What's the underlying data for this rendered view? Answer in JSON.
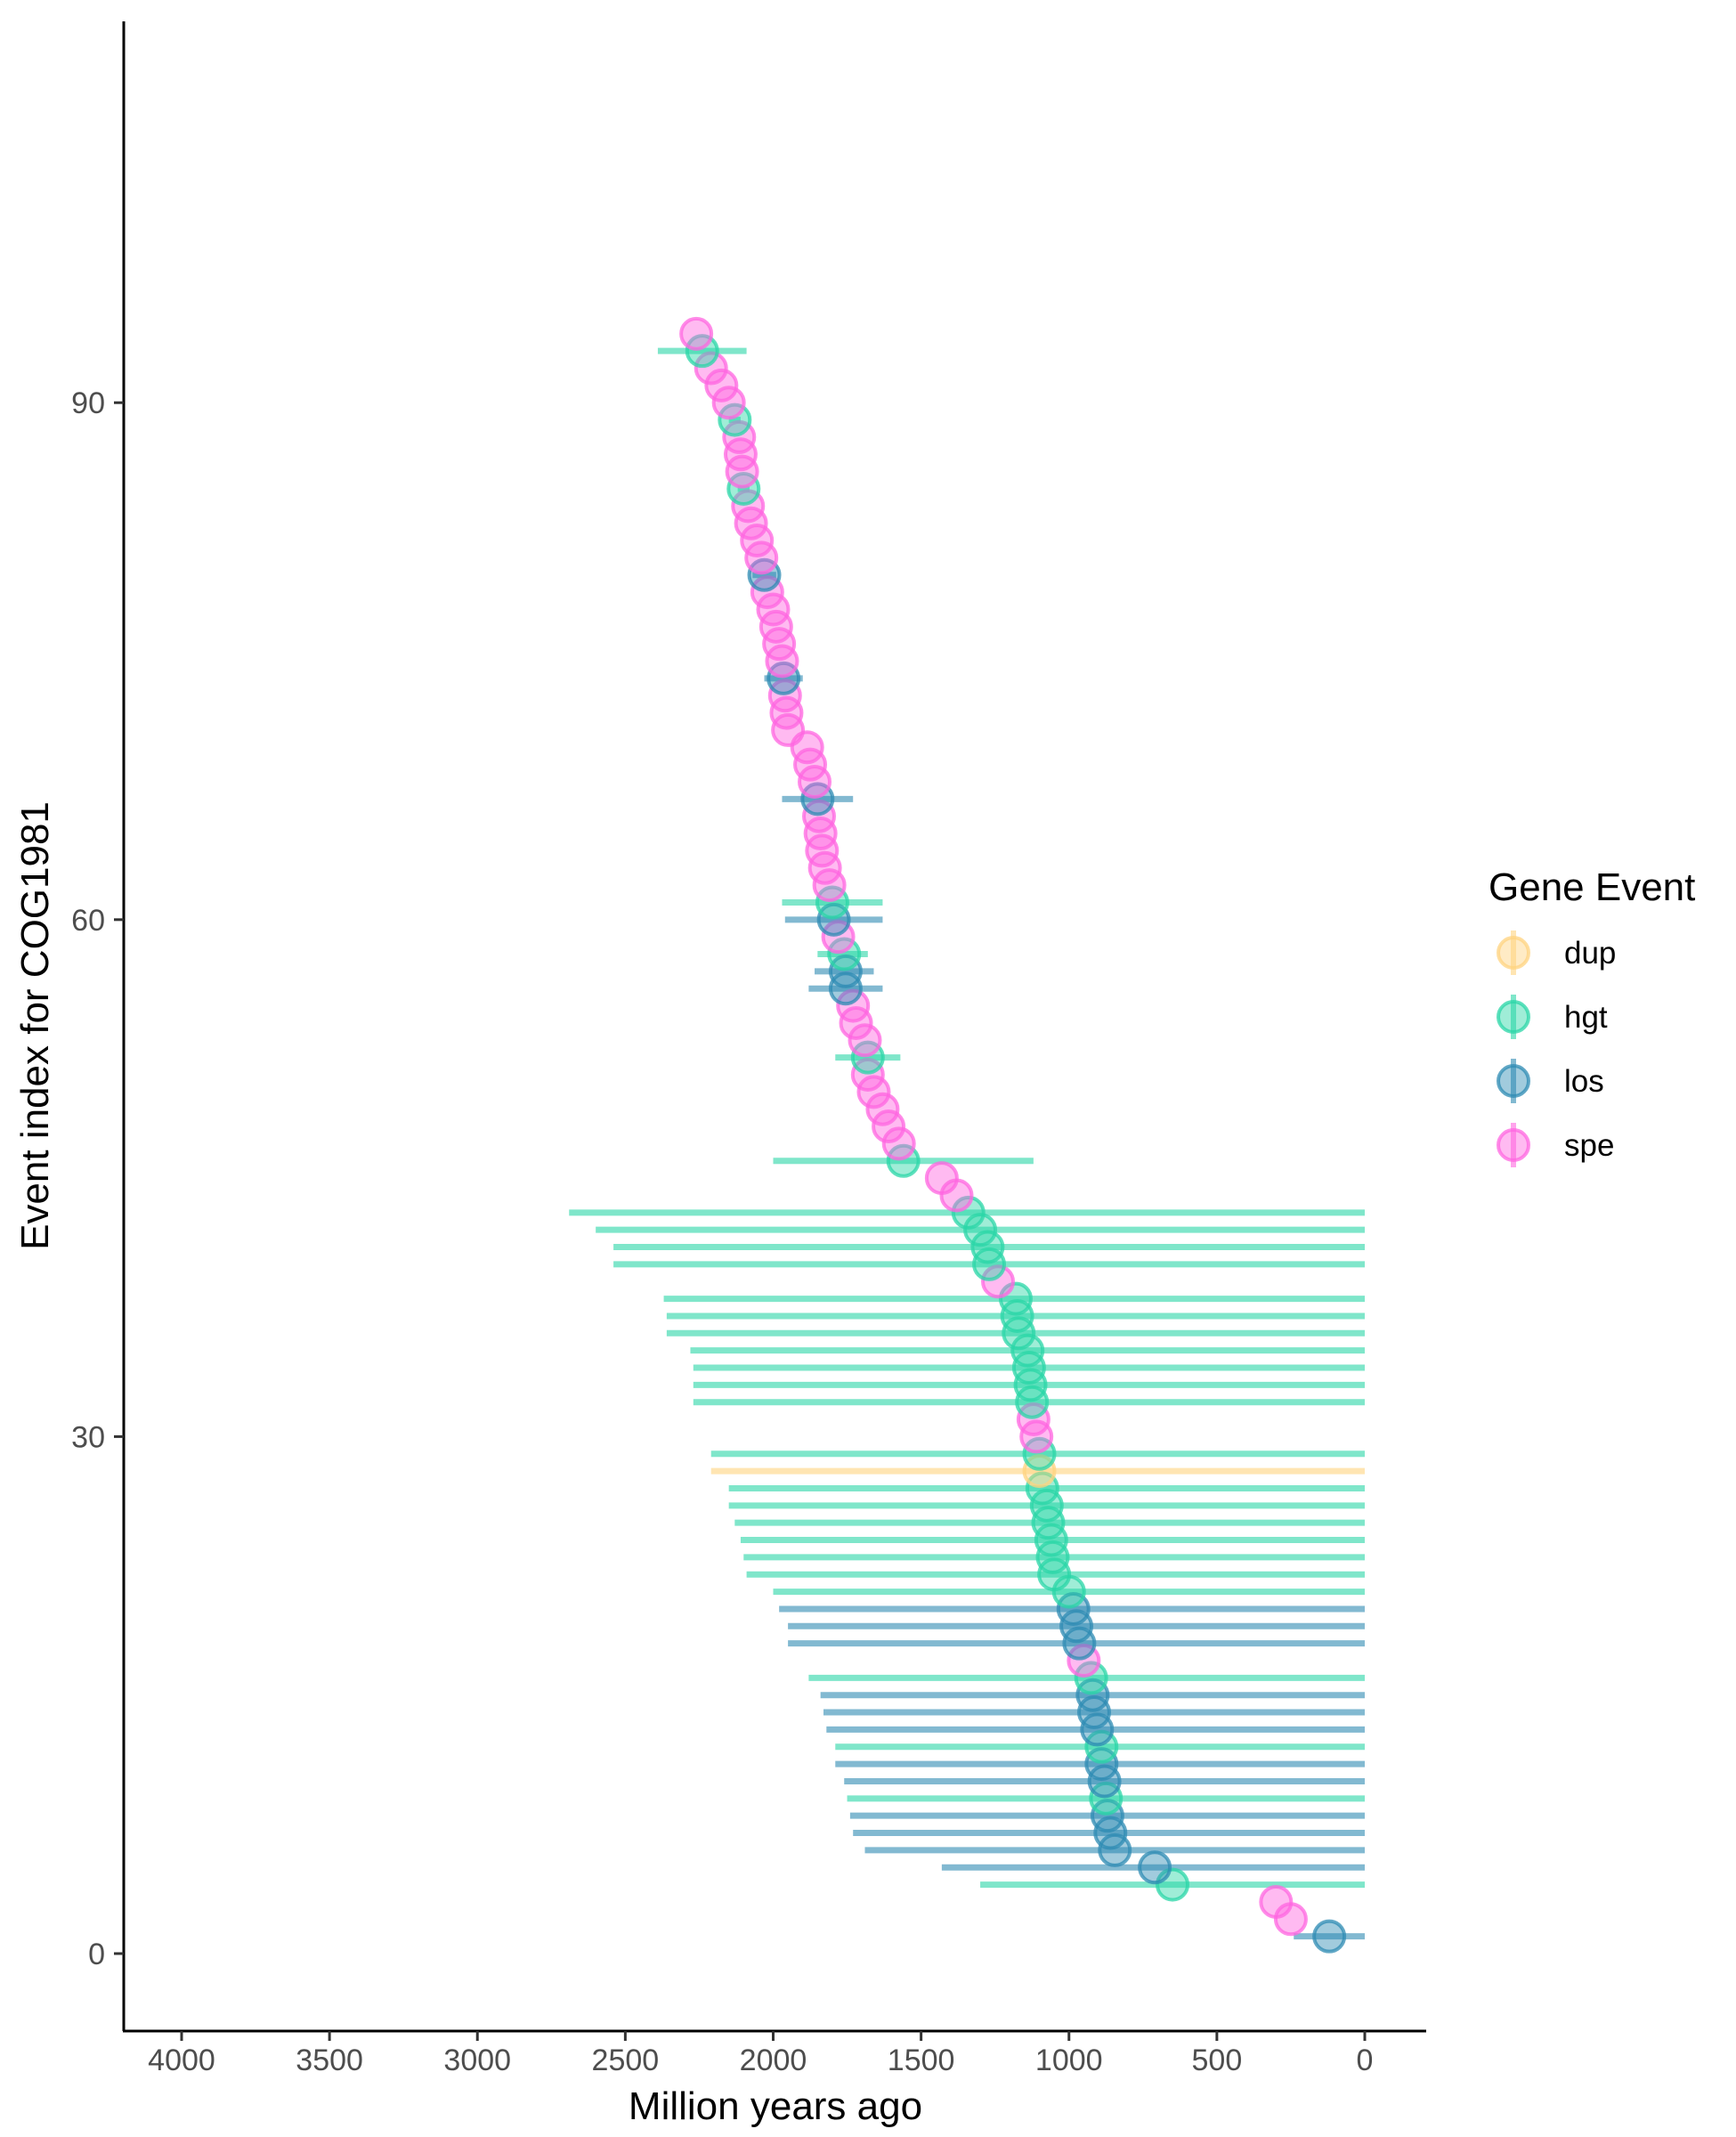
{
  "chart_data": {
    "type": "scatter",
    "title": "",
    "xlabel": "Million years ago",
    "ylabel": "Event index for COG1981",
    "xlim": [
      4200,
      -200
    ],
    "x_reversed": true,
    "ylim": [
      -4,
      111
    ],
    "x_ticks": [
      4000,
      3500,
      3000,
      2500,
      2000,
      1500,
      1000,
      500,
      0
    ],
    "x_tick_labels": [
      "4000",
      "3500",
      "3000",
      "2500",
      "2000",
      "1500",
      "1000",
      "500",
      "0"
    ],
    "y_ticks": [
      0,
      30,
      60,
      90
    ],
    "y_tick_labels": [
      "0",
      "30",
      "60",
      "90"
    ],
    "grid": false,
    "legend": {
      "title": "Gene Event",
      "placement": "right",
      "entries": [
        {
          "key": "dup",
          "label": "dup",
          "color": "#FFD37F"
        },
        {
          "key": "hgt",
          "label": "hgt",
          "color": "#2AD6A7"
        },
        {
          "key": "los",
          "label": "los",
          "color": "#2E8BB3"
        },
        {
          "key": "spe",
          "label": "spe",
          "color": "#FF66E0"
        }
      ]
    },
    "points": [
      {
        "i": 1,
        "event": "los",
        "x": 120,
        "xmin": 0,
        "xmax": 240
      },
      {
        "i": 2,
        "event": "spe",
        "x": 250
      },
      {
        "i": 3,
        "event": "spe",
        "x": 300
      },
      {
        "i": 4,
        "event": "hgt",
        "x": 650,
        "xmin": 0,
        "xmax": 1300
      },
      {
        "i": 5,
        "event": "los",
        "x": 710,
        "xmin": 0,
        "xmax": 1430
      },
      {
        "i": 6,
        "event": "los",
        "x": 845,
        "xmin": 0,
        "xmax": 1690
      },
      {
        "i": 7,
        "event": "los",
        "x": 860,
        "xmin": 0,
        "xmax": 1730
      },
      {
        "i": 8,
        "event": "los",
        "x": 870,
        "xmin": 0,
        "xmax": 1740
      },
      {
        "i": 9,
        "event": "hgt",
        "x": 875,
        "xmin": 0,
        "xmax": 1750
      },
      {
        "i": 10,
        "event": "los",
        "x": 880,
        "xmin": 0,
        "xmax": 1760
      },
      {
        "i": 11,
        "event": "los",
        "x": 890,
        "xmin": 0,
        "xmax": 1790
      },
      {
        "i": 12,
        "event": "hgt",
        "x": 890,
        "xmin": 0,
        "xmax": 1790
      },
      {
        "i": 13,
        "event": "los",
        "x": 905,
        "xmin": 0,
        "xmax": 1820
      },
      {
        "i": 14,
        "event": "los",
        "x": 915,
        "xmin": 0,
        "xmax": 1830
      },
      {
        "i": 15,
        "event": "los",
        "x": 920,
        "xmin": 0,
        "xmax": 1840
      },
      {
        "i": 16,
        "event": "hgt",
        "x": 925,
        "xmin": 0,
        "xmax": 1880
      },
      {
        "i": 17,
        "event": "spe",
        "x": 950
      },
      {
        "i": 18,
        "event": "los",
        "x": 965,
        "xmin": 0,
        "xmax": 1950
      },
      {
        "i": 19,
        "event": "los",
        "x": 975,
        "xmin": 0,
        "xmax": 1950
      },
      {
        "i": 20,
        "event": "los",
        "x": 985,
        "xmin": 0,
        "xmax": 1980
      },
      {
        "i": 21,
        "event": "hgt",
        "x": 1000,
        "xmin": 0,
        "xmax": 2000
      },
      {
        "i": 22,
        "event": "hgt",
        "x": 1050,
        "xmin": 0,
        "xmax": 2090
      },
      {
        "i": 23,
        "event": "hgt",
        "x": 1055,
        "xmin": 0,
        "xmax": 2100
      },
      {
        "i": 24,
        "event": "hgt",
        "x": 1060,
        "xmin": 0,
        "xmax": 2110
      },
      {
        "i": 25,
        "event": "hgt",
        "x": 1070,
        "xmin": 0,
        "xmax": 2130
      },
      {
        "i": 26,
        "event": "hgt",
        "x": 1075,
        "xmin": 0,
        "xmax": 2150
      },
      {
        "i": 27,
        "event": "hgt",
        "x": 1090,
        "xmin": 0,
        "xmax": 2150
      },
      {
        "i": 28,
        "event": "dup",
        "x": 1100,
        "xmin": 0,
        "xmax": 2210
      },
      {
        "i": 29,
        "event": "hgt",
        "x": 1100,
        "xmin": 0,
        "xmax": 2210
      },
      {
        "i": 30,
        "event": "spe",
        "x": 1110
      },
      {
        "i": 31,
        "event": "spe",
        "x": 1120
      },
      {
        "i": 32,
        "event": "hgt",
        "x": 1125,
        "xmin": 0,
        "xmax": 2270
      },
      {
        "i": 33,
        "event": "hgt",
        "x": 1130,
        "xmin": 0,
        "xmax": 2270
      },
      {
        "i": 34,
        "event": "hgt",
        "x": 1135,
        "xmin": 0,
        "xmax": 2270
      },
      {
        "i": 35,
        "event": "hgt",
        "x": 1140,
        "xmin": 0,
        "xmax": 2280
      },
      {
        "i": 36,
        "event": "hgt",
        "x": 1170,
        "xmin": 0,
        "xmax": 2360
      },
      {
        "i": 37,
        "event": "hgt",
        "x": 1175,
        "xmin": 0,
        "xmax": 2360
      },
      {
        "i": 38,
        "event": "hgt",
        "x": 1180,
        "xmin": 0,
        "xmax": 2370
      },
      {
        "i": 39,
        "event": "spe",
        "x": 1240
      },
      {
        "i": 40,
        "event": "hgt",
        "x": 1270,
        "xmin": 0,
        "xmax": 2540
      },
      {
        "i": 41,
        "event": "hgt",
        "x": 1275,
        "xmin": 0,
        "xmax": 2540
      },
      {
        "i": 42,
        "event": "hgt",
        "x": 1300,
        "xmin": 0,
        "xmax": 2600
      },
      {
        "i": 43,
        "event": "hgt",
        "x": 1340,
        "xmin": 0,
        "xmax": 2690
      },
      {
        "i": 44,
        "event": "spe",
        "x": 1380
      },
      {
        "i": 45,
        "event": "spe",
        "x": 1430
      },
      {
        "i": 46,
        "event": "hgt",
        "x": 1560,
        "xmin": 1120,
        "xmax": 2000
      },
      {
        "i": 47,
        "event": "spe",
        "x": 1575
      },
      {
        "i": 48,
        "event": "spe",
        "x": 1610
      },
      {
        "i": 49,
        "event": "spe",
        "x": 1630
      },
      {
        "i": 50,
        "event": "spe",
        "x": 1660
      },
      {
        "i": 51,
        "event": "spe",
        "x": 1680
      },
      {
        "i": 52,
        "event": "hgt",
        "x": 1680,
        "xmin": 1570,
        "xmax": 1790
      },
      {
        "i": 53,
        "event": "spe",
        "x": 1690
      },
      {
        "i": 54,
        "event": "spe",
        "x": 1720
      },
      {
        "i": 55,
        "event": "spe",
        "x": 1730
      },
      {
        "i": 56,
        "event": "los",
        "x": 1755,
        "xmin": 1630,
        "xmax": 1880
      },
      {
        "i": 57,
        "event": "los",
        "x": 1755,
        "xmin": 1660,
        "xmax": 1860
      },
      {
        "i": 58,
        "event": "hgt",
        "x": 1760,
        "xmin": 1680,
        "xmax": 1850
      },
      {
        "i": 59,
        "event": "spe",
        "x": 1780
      },
      {
        "i": 60,
        "event": "los",
        "x": 1795,
        "xmin": 1630,
        "xmax": 1960
      },
      {
        "i": 61,
        "event": "hgt",
        "x": 1800,
        "xmin": 1630,
        "xmax": 1970
      },
      {
        "i": 62,
        "event": "spe",
        "x": 1810
      },
      {
        "i": 63,
        "event": "spe",
        "x": 1825
      },
      {
        "i": 64,
        "event": "spe",
        "x": 1835
      },
      {
        "i": 65,
        "event": "spe",
        "x": 1840
      },
      {
        "i": 66,
        "event": "spe",
        "x": 1845
      },
      {
        "i": 67,
        "event": "los",
        "x": 1850,
        "xmin": 1730,
        "xmax": 1970
      },
      {
        "i": 68,
        "event": "spe",
        "x": 1860
      },
      {
        "i": 69,
        "event": "spe",
        "x": 1875
      },
      {
        "i": 70,
        "event": "spe",
        "x": 1885
      },
      {
        "i": 71,
        "event": "spe",
        "x": 1950
      },
      {
        "i": 72,
        "event": "spe",
        "x": 1955
      },
      {
        "i": 73,
        "event": "spe",
        "x": 1960
      },
      {
        "i": 74,
        "event": "los",
        "x": 1965,
        "xmin": 1900,
        "xmax": 2030
      },
      {
        "i": 75,
        "event": "spe",
        "x": 1970
      },
      {
        "i": 76,
        "event": "spe",
        "x": 1980
      },
      {
        "i": 77,
        "event": "spe",
        "x": 1990
      },
      {
        "i": 78,
        "event": "spe",
        "x": 2000
      },
      {
        "i": 79,
        "event": "spe",
        "x": 2020
      },
      {
        "i": 80,
        "event": "los",
        "x": 2030,
        "xmin": 1990,
        "xmax": 2070
      },
      {
        "i": 81,
        "event": "spe",
        "x": 2040
      },
      {
        "i": 82,
        "event": "spe",
        "x": 2055
      },
      {
        "i": 83,
        "event": "spe",
        "x": 2075
      },
      {
        "i": 84,
        "event": "spe",
        "x": 2085
      },
      {
        "i": 85,
        "event": "hgt",
        "x": 2100,
        "xmin": 2080,
        "xmax": 2120
      },
      {
        "i": 86,
        "event": "spe",
        "x": 2105
      },
      {
        "i": 87,
        "event": "spe",
        "x": 2110
      },
      {
        "i": 88,
        "event": "spe",
        "x": 2115
      },
      {
        "i": 89,
        "event": "hgt",
        "x": 2130,
        "xmin": 2110,
        "xmax": 2150
      },
      {
        "i": 90,
        "event": "spe",
        "x": 2150
      },
      {
        "i": 91,
        "event": "spe",
        "x": 2175
      },
      {
        "i": 92,
        "event": "spe",
        "x": 2210
      },
      {
        "i": 93,
        "event": "hgt",
        "x": 2240,
        "xmin": 2090,
        "xmax": 2390
      },
      {
        "i": 94,
        "event": "spe",
        "x": 2260
      }
    ]
  }
}
